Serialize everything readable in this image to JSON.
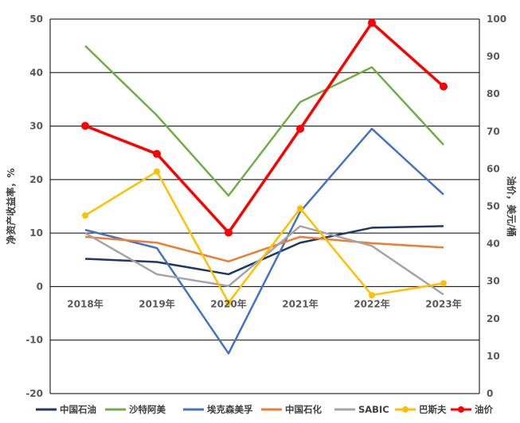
{
  "chart_data": {
    "type": "line",
    "title": "",
    "categories": [
      "2018年",
      "2019年",
      "2020年",
      "2021年",
      "2022年",
      "2023年"
    ],
    "y_left": {
      "label": "净资产收益率，%",
      "ylim": [
        -20,
        50
      ],
      "ticks": [
        "-20",
        "-10",
        "0",
        "10",
        "20",
        "30",
        "40",
        "50"
      ]
    },
    "y_right": {
      "label": "油价，美元/桶",
      "ylim": [
        0,
        100
      ],
      "ticks": [
        "0",
        "10",
        "20",
        "30",
        "40",
        "50",
        "60",
        "70",
        "80",
        "90",
        "100"
      ]
    },
    "grid": true,
    "legend_position": "bottom",
    "series": [
      {
        "name": "中国石油",
        "color": "#1f3864",
        "axis": "left",
        "markers": false,
        "values": [
          5.2,
          4.6,
          2.3,
          8.2,
          11.0,
          11.3
        ]
      },
      {
        "name": "沙特阿美",
        "color": "#70ad47",
        "axis": "left",
        "markers": false,
        "values": [
          45.0,
          32.0,
          17.0,
          34.5,
          41.0,
          26.5
        ]
      },
      {
        "name": "埃克森美孚",
        "color": "#4472c4",
        "axis": "left",
        "markers": false,
        "values": [
          10.6,
          7.2,
          -12.5,
          14.0,
          29.5,
          17.2
        ]
      },
      {
        "name": "中国石化",
        "color": "#ed7d31",
        "axis": "left",
        "markers": false,
        "values": [
          9.3,
          8.2,
          4.7,
          9.3,
          8.1,
          7.3
        ]
      },
      {
        "name": "SABIC",
        "color": "#a5a5a5",
        "axis": "left",
        "markers": false,
        "values": [
          10.0,
          2.3,
          0.1,
          11.3,
          7.6,
          -1.5
        ]
      },
      {
        "name": "巴斯夫",
        "color": "#ffc000",
        "axis": "left",
        "markers": true,
        "values": [
          13.3,
          21.5,
          -3.0,
          14.6,
          -1.6,
          0.6
        ]
      },
      {
        "name": "油价",
        "color": "#ff0000",
        "axis": "right",
        "markers": true,
        "values": [
          71.5,
          64.0,
          43.0,
          70.7,
          99.0,
          82.0
        ]
      }
    ]
  }
}
